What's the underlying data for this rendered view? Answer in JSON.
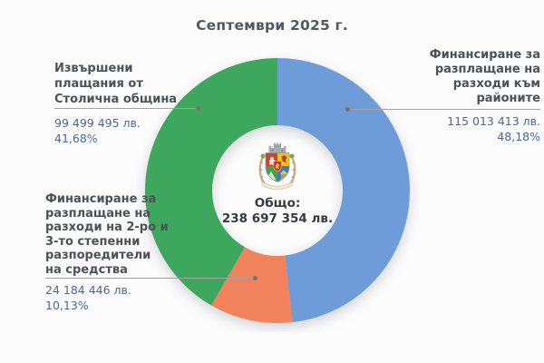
{
  "title": "Септември 2025 г.",
  "chart_data": {
    "type": "pie",
    "subtype": "donut",
    "title": "Септември 2025 г.",
    "unit": "лв.",
    "legend": "none",
    "start_angle_deg": 0,
    "direction": "clockwise",
    "inner_radius_ratio": 0.49,
    "center_icon": "sofia-coat-of-arms-icon",
    "total": {
      "label": "Общо:",
      "value": 238697354,
      "value_text": "238 697 354 лв."
    },
    "segments": [
      {
        "name": "Финансиране за разплащане на разходи към районите",
        "value": 115013413,
        "value_text": "115 013 413 лв.",
        "percent": 48.18,
        "percent_text": "48,18%",
        "color": "#6d9cd8"
      },
      {
        "name": "Финансиране за разплащане на разходи на 2-ро и 3-то степенни разпоредители на средства",
        "value": 24184446,
        "value_text": "24 184 446 лв.",
        "percent": 10.13,
        "percent_text": "10,13%",
        "color": "#f0835b"
      },
      {
        "name": "Извършени плащания от Столична община",
        "value": 99499495,
        "value_text": "99 499 495 лв.",
        "percent": 41.68,
        "percent_text": "41,68%",
        "color": "#3ea75e"
      }
    ]
  },
  "callouts": {
    "left_top": {
      "segment": 2,
      "lines": [
        "Извършени",
        "плащания от",
        "Столична община"
      ]
    },
    "right": {
      "segment": 0,
      "lines": [
        "Финансиране за",
        "разплащане на",
        "разходи към",
        "районите"
      ]
    },
    "left_bottom": {
      "segment": 1,
      "lines": [
        "Финансиране за",
        "разплащане на",
        "разходи на 2-ро и",
        "3-то степенни",
        "разпоредители",
        "на средства"
      ]
    }
  },
  "colors": {
    "background": "#fcfcfd",
    "title_text": "#54585d",
    "label_text": "#4c5156",
    "value_text": "#4667a2",
    "center_text": "#36393e",
    "leader_line": "#a3a3a3",
    "leader_dot": "#8a6a6c",
    "segment_blue": "#6d9cd8",
    "segment_orange": "#f0835b",
    "segment_green": "#3ea75e"
  }
}
